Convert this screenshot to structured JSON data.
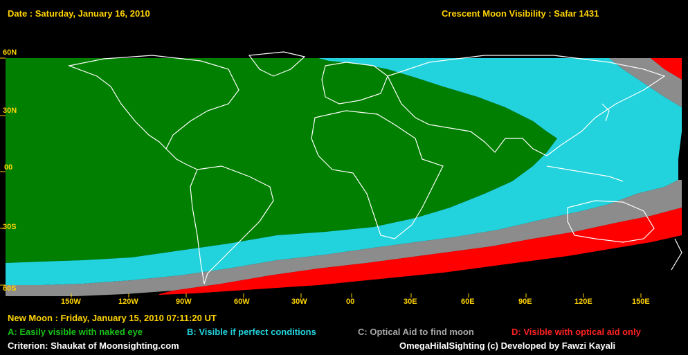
{
  "header": {
    "date_text": "Date : Saturday, January 16, 2010",
    "title_text": "Crescent Moon Visibility : Safar  1431"
  },
  "lat_labels": [
    "60N",
    "30N",
    "00",
    "30S",
    "60S"
  ],
  "lon_labels": [
    "150W",
    "120W",
    "90W",
    "60W",
    "30W",
    "00",
    "30E",
    "60E",
    "90E",
    "120E",
    "150E"
  ],
  "footer": {
    "new_moon_text": "New Moon : Friday, January 15, 2010  07:11:20  UT",
    "legend": [
      {
        "label": "A: Easily visible with naked eye",
        "color": "#18c018"
      },
      {
        "label": "B: Visible if perfect conditions",
        "color": "#22d3dd"
      },
      {
        "label": "C: Optical Aid to find moon",
        "color": "#a8a8a8"
      },
      {
        "label": "D: Visible with optical aid only",
        "color": "#ff2222"
      }
    ],
    "criterion_text": "Criterion: Shaukat of Moonsighting.com",
    "credit_text": "OmegaHilalSighting  (c)  Developed by Fawzi Kayali"
  },
  "zone_colors": {
    "A": "#007f00",
    "B": "#22d3dd",
    "C": "#8c8c8c",
    "D": "#ff0000",
    "none": "#000000"
  }
}
